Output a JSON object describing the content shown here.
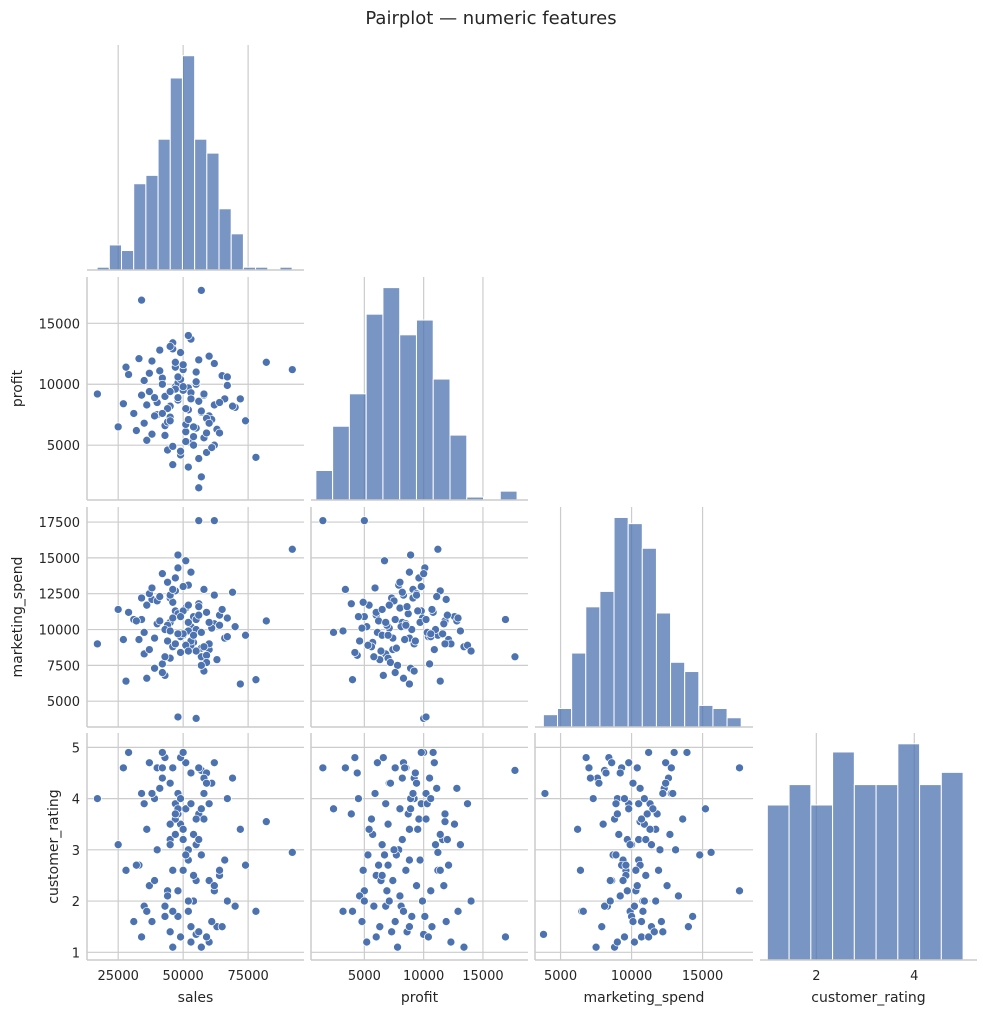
{
  "chart_data": {
    "type": "scatter",
    "title": "Pairplot — numeric features",
    "variables": [
      "sales",
      "profit",
      "marketing_spend",
      "customer_rating"
    ],
    "layout": "corner pairplot (lower triangle scatter, diagonal histograms)",
    "grid": true,
    "colors": {
      "marker": "#4c72b0",
      "hist": "#4c72b0",
      "grid": "#cccccc"
    },
    "axis_ranges": {
      "sales": [
        13000,
        96500
      ],
      "profit": [
        500,
        18800
      ],
      "marketing_spend": [
        3200,
        18550
      ],
      "customer_rating": [
        0.85,
        5.28
      ]
    },
    "ticks_x": {
      "sales": {
        "values": [
          25000,
          50000,
          75000
        ],
        "labels": [
          "25000",
          "50000",
          "75000"
        ]
      },
      "profit": {
        "values": [
          5000,
          10000,
          15000
        ],
        "labels": [
          "5000",
          "10000",
          "15000"
        ]
      },
      "marketing_spend": {
        "values": [
          5000,
          10000,
          15000
        ],
        "labels": [
          "5000",
          "10000",
          "15000"
        ]
      },
      "customer_rating": {
        "values": [
          2,
          4
        ],
        "labels": [
          "2",
          "4"
        ]
      }
    },
    "ticks_y": {
      "profit": {
        "values": [
          5000,
          10000,
          15000
        ],
        "labels": [
          "5000",
          "10000",
          "15000"
        ]
      },
      "marketing_spend": {
        "values": [
          5000,
          7500,
          10000,
          12500,
          15000,
          17500
        ],
        "labels": [
          "5000",
          "7500",
          "10000",
          "12500",
          "15000",
          "17500"
        ]
      },
      "customer_rating": {
        "values": [
          1,
          2,
          3,
          4,
          5
        ],
        "labels": [
          "1",
          "2",
          "3",
          "4",
          "5"
        ]
      }
    },
    "histograms": {
      "sales": {
        "bin_start": 16900,
        "bin_width": 4690,
        "counts": [
          1,
          9,
          7,
          31,
          34,
          47,
          69,
          77,
          47,
          42,
          22,
          13,
          1,
          1,
          0,
          1
        ]
      },
      "profit": {
        "bin_start": 910,
        "bin_width": 1414,
        "counts": [
          10,
          25,
          36,
          63,
          72,
          56,
          61,
          41,
          22,
          1,
          0,
          3
        ]
      },
      "marketing_spend": {
        "bin_start": 3790,
        "bin_width": 995,
        "counts": [
          4,
          6,
          24,
          39,
          44,
          68,
          66,
          58,
          37,
          21,
          18,
          7,
          6,
          3
        ]
      },
      "customer_rating": {
        "bin_start": 1.0,
        "bin_width": 0.444,
        "counts": [
          38,
          43,
          38,
          51,
          43,
          43,
          53,
          43,
          46
        ]
      }
    },
    "points": {
      "columns": [
        "sales",
        "profit",
        "marketing_spend",
        "customer_rating"
      ],
      "rows": [
        [
          92000,
          11200,
          15600,
          2.95
        ],
        [
          17000,
          9200,
          9000,
          4.0
        ],
        [
          34000,
          16900,
          10700,
          1.3
        ],
        [
          57000,
          17700,
          8100,
          4.55
        ],
        [
          56000,
          1500,
          17600,
          4.6
        ],
        [
          62000,
          5000,
          17600,
          2.2
        ],
        [
          82000,
          11800,
          10600,
          3.55
        ],
        [
          78000,
          4000,
          6500,
          1.8
        ],
        [
          55000,
          10000,
          3800,
          1.35
        ],
        [
          48000,
          10200,
          3900,
          4.1
        ],
        [
          45000,
          8200,
          10500,
          3.2
        ],
        [
          51000,
          6100,
          9800,
          4.7
        ],
        [
          38000,
          11900,
          12100,
          1.6
        ],
        [
          60000,
          7400,
          8600,
          2.4
        ],
        [
          47000,
          9800,
          11300,
          3.9
        ],
        [
          53000,
          5200,
          10200,
          1.2
        ],
        [
          42000,
          10500,
          7600,
          4.4
        ],
        [
          66000,
          8800,
          9400,
          2.8
        ],
        [
          49000,
          12600,
          10900,
          3.5
        ],
        [
          35000,
          6800,
          8300,
          1.9
        ],
        [
          58000,
          9100,
          12800,
          4.1
        ],
        [
          44000,
          4600,
          9200,
          2.1
        ],
        [
          52000,
          7900,
          13100,
          3.0
        ],
        [
          29000,
          10800,
          11200,
          4.9
        ],
        [
          63000,
          6300,
          7900,
          1.5
        ],
        [
          50000,
          11200,
          9600,
          2.6
        ],
        [
          40000,
          8500,
          10400,
          4.6
        ],
        [
          56000,
          3900,
          11800,
          3.7
        ],
        [
          46000,
          13400,
          8800,
          1.1
        ],
        [
          61000,
          7100,
          10100,
          4.3
        ],
        [
          37000,
          9400,
          12500,
          2.3
        ],
        [
          54000,
          5700,
          9100,
          3.3
        ],
        [
          48000,
          10100,
          14300,
          1.7
        ],
        [
          43000,
          6600,
          6800,
          4.8
        ],
        [
          67000,
          9900,
          10800,
          2.0
        ],
        [
          51000,
          8000,
          11500,
          3.8
        ],
        [
          33000,
          12100,
          9300,
          2.7
        ],
        [
          59000,
          4400,
          8200,
          4.5
        ],
        [
          45000,
          7300,
          12200,
          1.4
        ],
        [
          55000,
          11000,
          10000,
          3.1
        ],
        [
          39000,
          8900,
          7300,
          4.0
        ],
        [
          64000,
          6000,
          11000,
          2.5
        ],
        [
          47000,
          9600,
          13600,
          3.6
        ],
        [
          52000,
          3200,
          9900,
          1.8
        ],
        [
          41000,
          12800,
          10600,
          4.2
        ],
        [
          57000,
          7700,
          8700,
          2.9
        ],
        [
          36000,
          5400,
          11700,
          3.4
        ],
        [
          49000,
          10400,
          9500,
          1.3
        ],
        [
          62000,
          8300,
          12400,
          4.7
        ],
        [
          44000,
          6900,
          10300,
          2.2
        ],
        [
          53000,
          13700,
          8900,
          3.9
        ],
        [
          31000,
          7600,
          10700,
          1.6
        ],
        [
          58000,
          9200,
          7100,
          4.4
        ],
        [
          46000,
          4900,
          11900,
          2.6
        ],
        [
          50000,
          11600,
          9700,
          3.2
        ],
        [
          70000,
          8100,
          10200,
          1.9
        ],
        [
          42000,
          10000,
          13900,
          4.9
        ],
        [
          55000,
          6400,
          8500,
          2.4
        ],
        [
          48000,
          8700,
          11100,
          3.7
        ],
        [
          60000,
          12300,
          9000,
          1.2
        ],
        [
          38000,
          5900,
          12900,
          4.1
        ],
        [
          52000,
          9700,
          10500,
          2.8
        ],
        [
          45000,
          7000,
          8000,
          3.5
        ],
        [
          65000,
          10700,
          11400,
          1.5
        ],
        [
          27000,
          8400,
          9300,
          4.6
        ],
        [
          54000,
          5000,
          10900,
          2.0
        ],
        [
          47000,
          11400,
          12700,
          3.3
        ],
        [
          59000,
          7200,
          7700,
          4.3
        ],
        [
          43000,
          9000,
          10000,
          1.7
        ],
        [
          51000,
          6700,
          14800,
          2.9
        ],
        [
          35000,
          10300,
          9800,
          3.9
        ],
        [
          56000,
          8600,
          11600,
          1.4
        ],
        [
          49000,
          4200,
          8400,
          4.8
        ],
        [
          62000,
          11700,
          10400,
          2.3
        ],
        [
          40000,
          7500,
          12000,
          3.0
        ],
        [
          53000,
          9300,
          9200,
          4.5
        ],
        [
          46000,
          12900,
          10800,
          1.8
        ],
        [
          58000,
          5600,
          8800,
          3.6
        ],
        [
          44000,
          8000,
          13300,
          2.1
        ],
        [
          67000,
          10600,
          9500,
          4.0
        ],
        [
          32000,
          6200,
          10600,
          2.7
        ],
        [
          50000,
          9500,
          11300,
          3.4
        ],
        [
          57000,
          7800,
          7500,
          1.1
        ],
        [
          41000,
          11100,
          12300,
          4.2
        ],
        [
          54000,
          6500,
          9600,
          2.5
        ],
        [
          48000,
          8900,
          15200,
          3.8
        ],
        [
          61000,
          4800,
          10100,
          1.6
        ],
        [
          37000,
          10900,
          8600,
          4.7
        ],
        [
          52000,
          7100,
          11700,
          2.0
        ],
        [
          45000,
          13100,
          9900,
          3.1
        ],
        [
          69000,
          8200,
          12600,
          4.4
        ],
        [
          43000,
          5800,
          8100,
          1.9
        ],
        [
          55000,
          10200,
          10700,
          3.6
        ],
        [
          39000,
          7400,
          9400,
          2.4
        ],
        [
          50000,
          9800,
          13000,
          4.9
        ],
        [
          59000,
          6000,
          11200,
          1.3
        ],
        [
          47000,
          11800,
          9000,
          3.7
        ],
        [
          64000,
          8500,
          10300,
          2.6
        ],
        [
          34000,
          9100,
          12200,
          4.1
        ],
        [
          51000,
          5300,
          8900,
          2.9
        ],
        [
          56000,
          12000,
          11000,
          3.2
        ],
        [
          42000,
          7600,
          7000,
          4.6
        ],
        [
          53000,
          8800,
          14000,
          1.5
        ],
        [
          48000,
          10600,
          9700,
          2.2
        ],
        [
          60000,
          6800,
          10500,
          3.9
        ],
        [
          45000,
          9400,
          12400,
          4.3
        ],
        [
          25000,
          6500,
          11400,
          3.1
        ],
        [
          74000,
          7000,
          9600,
          2.7
        ],
        [
          36000,
          8300,
          6600,
          1.8
        ],
        [
          49000,
          4500,
          10900,
          4.0
        ],
        [
          72000,
          8800,
          6200,
          3.4
        ],
        [
          28000,
          11400,
          6400,
          2.6
        ],
        [
          52000,
          14000,
          8500,
          2.0
        ],
        [
          57000,
          2400,
          9800,
          3.8
        ],
        [
          46000,
          3400,
          12800,
          4.6
        ]
      ]
    }
  }
}
